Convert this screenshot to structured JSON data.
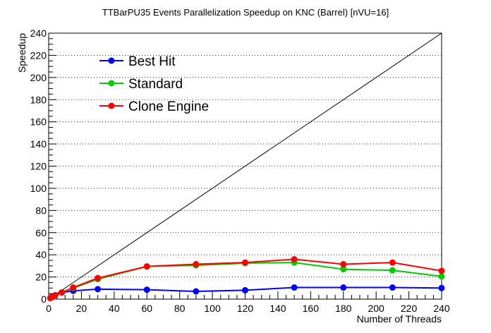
{
  "chart_data": {
    "type": "line",
    "title": "TTBarPU35 Events Parallelization Speedup on KNC (Barrel) [nVU=16]",
    "xlabel": "Number of Threads",
    "ylabel": "Speedup",
    "xlim": [
      0,
      240
    ],
    "ylim": [
      0,
      240
    ],
    "xticks": [
      0,
      20,
      40,
      60,
      80,
      100,
      120,
      140,
      160,
      180,
      200,
      220,
      240
    ],
    "yticks": [
      0,
      20,
      40,
      60,
      80,
      100,
      120,
      140,
      160,
      180,
      200,
      220,
      240
    ],
    "grid": "horizontal dotted",
    "legend_position": "top-left",
    "reference_line": {
      "x": [
        0,
        240
      ],
      "y": [
        0,
        240
      ],
      "color": "#000000"
    },
    "series": [
      {
        "name": "Best Hit",
        "color": "#0000ff",
        "x": [
          1,
          2,
          4,
          8,
          15,
          30,
          60,
          90,
          120,
          150,
          180,
          210,
          240
        ],
        "y": [
          1,
          2,
          3.5,
          6,
          7.5,
          9,
          8.5,
          7,
          8,
          10.5,
          10.5,
          10.5,
          10
        ]
      },
      {
        "name": "Standard",
        "color": "#00cc00",
        "x": [
          1,
          2,
          4,
          8,
          15,
          30,
          60,
          90,
          120,
          150,
          180,
          210,
          240
        ],
        "y": [
          1,
          2,
          3.5,
          6,
          10,
          18,
          29.5,
          30.5,
          32.5,
          33,
          27,
          26,
          20.5
        ]
      },
      {
        "name": "Clone Engine",
        "color": "#ff0000",
        "x": [
          1,
          2,
          4,
          8,
          15,
          30,
          60,
          90,
          120,
          150,
          180,
          210,
          240
        ],
        "y": [
          1,
          2,
          3.5,
          6,
          10.5,
          19,
          29.5,
          31.5,
          33,
          36,
          31.5,
          33,
          25.5
        ]
      }
    ]
  }
}
